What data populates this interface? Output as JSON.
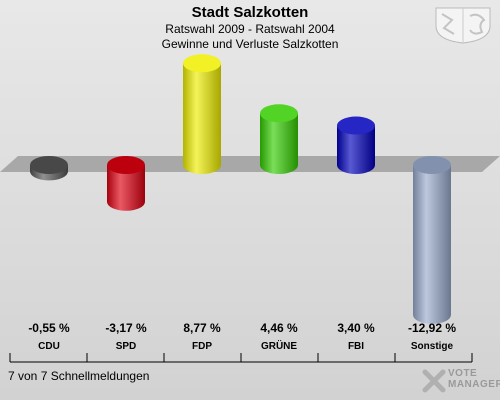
{
  "header": {
    "title": "Stadt Salzkotten",
    "subtitle1": "Ratswahl 2009 - Ratswahl 2004",
    "subtitle2": "Gewinne und Verluste Salzkotten"
  },
  "footer": {
    "status": "7 von 7 Schnellmeldungen",
    "brand_line1": "VOTE",
    "brand_line2": "MANAGER"
  },
  "chart_data": {
    "type": "bar",
    "title": "Stadt Salzkotten",
    "subtitle": "Ratswahl 2009 - Ratswahl 2004 / Gewinne und Verluste Salzkotten",
    "categories": [
      "CDU",
      "SPD",
      "FDP",
      "GRÜNE",
      "FBI",
      "Sonstige"
    ],
    "values": [
      -0.55,
      -3.17,
      8.77,
      4.46,
      3.4,
      -12.92
    ],
    "value_labels": [
      "-0,55 %",
      "-3,17 %",
      "8,77 %",
      "4,46 %",
      "3,40 %",
      "-12,92 %"
    ],
    "colors": [
      "#555555",
      "#dd0011",
      "#eeee00",
      "#33cc00",
      "#0000bb",
      "#99aacc"
    ],
    "unit": "%",
    "grid": false,
    "legend": "none"
  }
}
